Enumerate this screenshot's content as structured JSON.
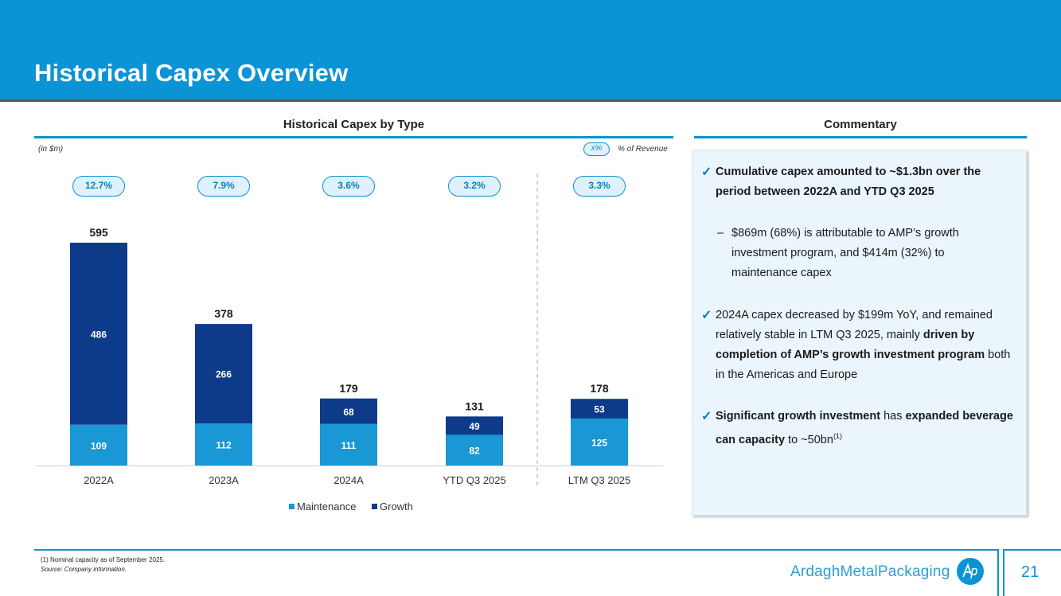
{
  "header": {
    "title": "Historical Capex Overview"
  },
  "chart_section": {
    "title": "Historical Capex by Type",
    "unit_note": "(in $m)",
    "legend_pill": "x%",
    "legend_pct_label": "% of Revenue"
  },
  "chart_data": {
    "type": "bar",
    "stacked": true,
    "categories": [
      "2022A",
      "2023A",
      "2024A",
      "YTD Q3 2025",
      "LTM Q3 2025"
    ],
    "series": [
      {
        "name": "Maintenance",
        "values": [
          109,
          112,
          111,
          82,
          125
        ],
        "color": "#1a97d5"
      },
      {
        "name": "Growth",
        "values": [
          486,
          266,
          68,
          49,
          53
        ],
        "color": "#0d3b8a"
      }
    ],
    "totals": [
      "595",
      "378",
      "179",
      "131",
      "178"
    ],
    "pct_of_revenue": [
      "12.7%",
      "7.9%",
      "3.6%",
      "3.2%",
      "3.3%"
    ],
    "ylim": [
      0,
      620
    ],
    "legend": [
      "Maintenance",
      "Growth"
    ],
    "legend_position": "bottom"
  },
  "commentary": {
    "title": "Commentary",
    "p1": "Cumulative capex amounted to ~$1.3bn over the period between 2022A and YTD Q3 2025",
    "p2": "$869m (68%) is attributable to AMP’s growth investment program, and $414m (32%) to maintenance capex",
    "p3_a": "2024A capex decreased by $199m YoY, and remained relatively stable in LTM Q3 2025, mainly ",
    "p3_b": "driven by completion of AMP’s growth investment program",
    "p3_c": " both in the Americas and Europe",
    "p4_a": "Significant growth investment",
    "p4_b": " has ",
    "p4_c": "expanded beverage can capacity",
    "p4_d": " to ~50bn",
    "p4_sup": "(1)"
  },
  "footer": {
    "footnote": "(1)    Nominal capacity as of September 2025.",
    "source": "Source: Company information.",
    "brand": "ArdaghMetalPackaging",
    "page_number": "21"
  },
  "colors": {
    "accent": "#0a93d5",
    "maintenance": "#1a97d5",
    "growth": "#0d3b8a"
  }
}
